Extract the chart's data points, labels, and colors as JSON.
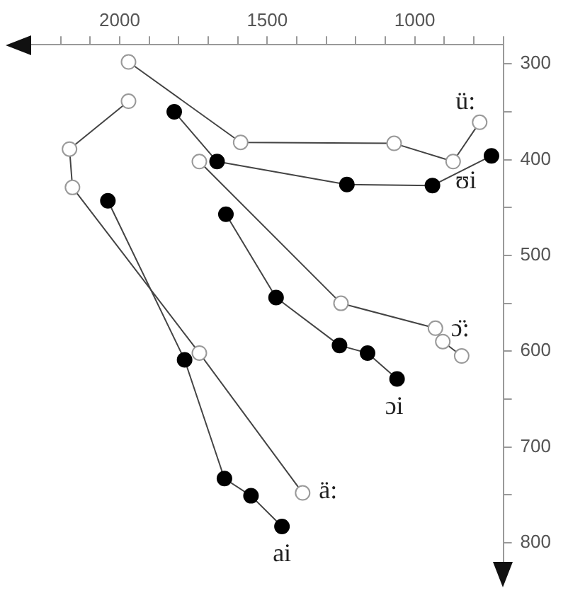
{
  "chart_data": {
    "type": "line",
    "xlim": [
      2300,
      700
    ],
    "xticks": [
      {
        "value": 2200,
        "label": null
      },
      {
        "value": 2100,
        "label": null
      },
      2000,
      {
        "value": 1900,
        "label": null
      },
      {
        "value": 1800,
        "label": null
      },
      {
        "value": 1700,
        "label": null
      },
      {
        "value": 1600,
        "label": null
      },
      1500,
      {
        "value": 1400,
        "label": null
      },
      {
        "value": 1300,
        "label": null
      },
      {
        "value": 1200,
        "label": null
      },
      {
        "value": 1100,
        "label": null
      },
      1000,
      {
        "value": 900,
        "label": null
      },
      {
        "value": 800,
        "label": null
      },
      {
        "value": 700,
        "label": null
      }
    ],
    "ylim": [
      820,
      280
    ],
    "yticks": [
      300,
      {
        "value": 350,
        "label": null
      },
      400,
      {
        "value": 450,
        "label": null
      },
      500,
      {
        "value": 550,
        "label": null
      },
      600,
      {
        "value": 650,
        "label": null
      },
      700,
      {
        "value": 750,
        "label": null
      },
      800
    ],
    "grid": false,
    "legend": false,
    "marker": "circle",
    "series": [
      {
        "name": "ü:",
        "color": "#ffffff",
        "x": [
          1970,
          1590,
          1070,
          870,
          780
        ],
        "values": [
          298,
          382,
          383,
          402,
          361
        ]
      },
      {
        "name": "ʊi",
        "color": "#000000",
        "x": [
          1815,
          1670,
          1230,
          940,
          740
        ],
        "values": [
          350,
          402,
          426,
          427,
          396
        ]
      },
      {
        "name": "ɔ̈:",
        "color": "#ffffff",
        "x": [
          1730,
          1250,
          930,
          905,
          841
        ],
        "values": [
          402,
          550,
          576,
          590,
          605
        ]
      },
      {
        "name": "ɔi",
        "color": "#000000",
        "x": [
          1640,
          1470,
          1255,
          1160,
          1060
        ],
        "values": [
          457,
          544,
          594,
          602,
          629
        ]
      },
      {
        "name": "ä:",
        "color": "#ffffff",
        "x": [
          1970,
          2170,
          2160,
          1730,
          1380
        ],
        "values": [
          339,
          389,
          429,
          602,
          748
        ]
      },
      {
        "name": "ai",
        "color": "#000000",
        "x": [
          2040,
          1780,
          1645,
          1555,
          1450
        ],
        "values": [
          443,
          609,
          733,
          751,
          783
        ]
      }
    ]
  }
}
